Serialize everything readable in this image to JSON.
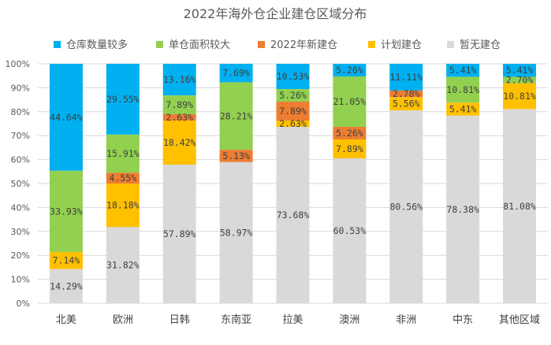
{
  "chart_data": {
    "type": "bar",
    "stacked": true,
    "percent_stacked": true,
    "title": "2022年海外仓企业建仓区域分布",
    "xlabel": "",
    "ylabel": "",
    "ylim": [
      0,
      100
    ],
    "yticks": [
      "0%",
      "10%",
      "20%",
      "30%",
      "40%",
      "50%",
      "60%",
      "70%",
      "80%",
      "90%",
      "100%"
    ],
    "grid": true,
    "legend_position": "top",
    "categories": [
      "北美",
      "欧洲",
      "日韩",
      "东南亚",
      "拉美",
      "澳洲",
      "非洲",
      "中东",
      "其他区域"
    ],
    "series": [
      {
        "name": "暂无建仓",
        "color": "#D9D9D9",
        "values": [
          14.29,
          31.82,
          57.89,
          58.97,
          73.68,
          60.53,
          80.56,
          78.38,
          81.08
        ]
      },
      {
        "name": "计划建仓",
        "color": "#FFC000",
        "values": [
          7.14,
          18.18,
          18.42,
          0,
          2.63,
          7.89,
          5.56,
          5.41,
          10.81
        ]
      },
      {
        "name": "2022年新建仓",
        "color": "#ED7D31",
        "values": [
          0,
          4.55,
          2.63,
          5.13,
          7.89,
          5.26,
          2.78,
          0,
          0
        ]
      },
      {
        "name": "单仓面积较大",
        "color": "#92D050",
        "values": [
          33.93,
          15.91,
          7.89,
          28.21,
          5.26,
          21.05,
          0,
          10.81,
          2.7
        ]
      },
      {
        "name": "仓库数量较多",
        "color": "#00B0F0",
        "values": [
          44.64,
          29.55,
          13.16,
          7.69,
          10.53,
          5.26,
          11.11,
          5.41,
          5.41
        ]
      }
    ],
    "legend_order": [
      "仓库数量较多",
      "单仓面积较大",
      "2022年新建仓",
      "计划建仓",
      "暂无建仓"
    ]
  }
}
